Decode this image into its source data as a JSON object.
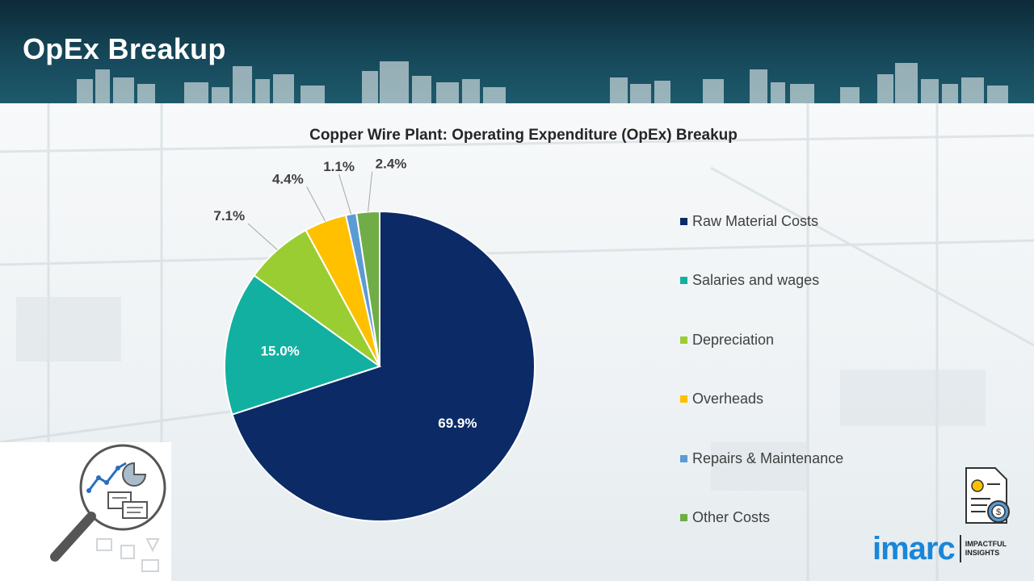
{
  "page": {
    "title": "OpEx Breakup"
  },
  "chart_data": {
    "type": "pie",
    "title": "Copper Wire Plant: Operating Expenditure (OpEx) Breakup",
    "categories": [
      "Raw Material Costs",
      "Salaries and wages",
      "Depreciation",
      "Overheads",
      "Repairs & Maintenance",
      "Other Costs"
    ],
    "values": [
      69.9,
      15.0,
      7.1,
      4.4,
      1.1,
      2.4
    ],
    "labels": [
      "69.9%",
      "15.0%",
      "7.1%",
      "4.4%",
      "1.1%",
      "2.4%"
    ],
    "colors": [
      "#0b2a66",
      "#12b0a0",
      "#9acd32",
      "#ffc000",
      "#5b9bd5",
      "#70ad47"
    ],
    "start_angle": "12 o'clock",
    "direction": "clockwise",
    "legend_position": "right"
  },
  "brand": {
    "logo": "imarc",
    "tagline_line1": "IMPACTFUL",
    "tagline_line2": "INSIGHTS"
  }
}
